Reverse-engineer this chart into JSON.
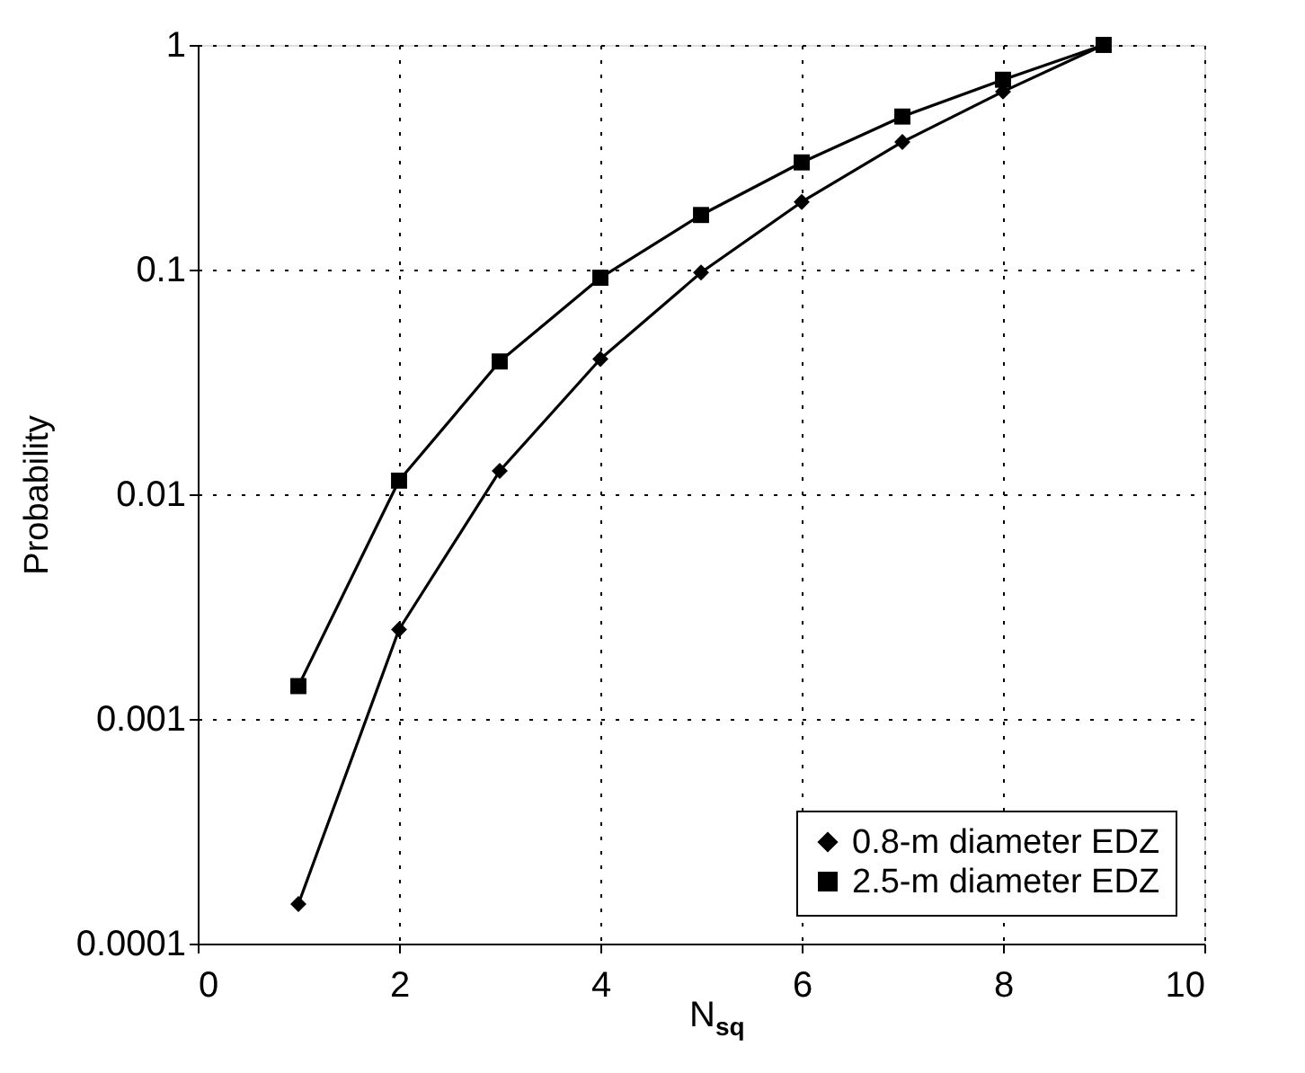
{
  "chart_data": {
    "type": "line",
    "xlabel": "N$_{sq}$",
    "ylabel": "Probability",
    "x": [
      1,
      2,
      3,
      4,
      5,
      6,
      7,
      8,
      9
    ],
    "series": [
      {
        "name": "0.8-m diameter EDZ",
        "color": "#000000",
        "marker": "diamond",
        "values": [
          0.00015,
          0.0025,
          0.0127,
          0.04,
          0.097,
          0.2,
          0.37,
          0.62,
          1
        ]
      },
      {
        "name": "2.5-m diameter EDZ",
        "color": "#000000",
        "marker": "square",
        "values": [
          0.0014,
          0.0115,
          0.039,
          0.092,
          0.175,
          0.3,
          0.48,
          0.7,
          1
        ]
      }
    ],
    "xlim": [
      0,
      10
    ],
    "xticks": [
      0,
      2,
      4,
      6,
      8,
      10
    ],
    "ylim": [
      0.0001,
      1
    ],
    "yticks": [
      0.0001,
      0.001,
      0.01,
      0.1,
      1
    ],
    "log": "y",
    "grid": true,
    "legend": "bottom right",
    "line_style": "solid"
  }
}
